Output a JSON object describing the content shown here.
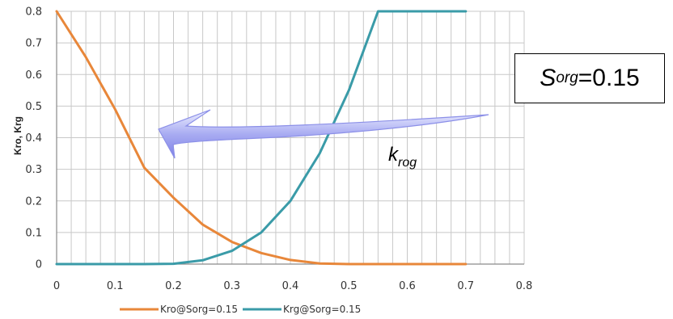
{
  "chart_data": {
    "type": "line",
    "title": "",
    "xlabel": "",
    "ylabel": "Kro, Krg",
    "xlim": [
      0,
      0.8
    ],
    "ylim": [
      0,
      0.8
    ],
    "xticks": [
      "0",
      "0.1",
      "0.2",
      "0.3",
      "0.4",
      "0.5",
      "0.6",
      "0.7",
      "0.8"
    ],
    "yticks": [
      "0",
      "0.1",
      "0.2",
      "0.3",
      "0.4",
      "0.5",
      "0.6",
      "0.7",
      "0.8"
    ],
    "grid": true,
    "legend_position": "bottom",
    "series": [
      {
        "name": "Kro@Sorg=0.15",
        "color": "#E8873A",
        "x": [
          0,
          0.05,
          0.1,
          0.15,
          0.2,
          0.25,
          0.3,
          0.35,
          0.4,
          0.45,
          0.5,
          0.55,
          0.6,
          0.65,
          0.7
        ],
        "y": [
          0.8,
          0.655,
          0.49,
          0.305,
          0.21,
          0.125,
          0.07,
          0.035,
          0.013,
          0.002,
          0,
          0,
          0,
          0,
          0
        ]
      },
      {
        "name": "Krg@Sorg=0.15",
        "color": "#3A9BA8",
        "x": [
          0,
          0.05,
          0.1,
          0.15,
          0.2,
          0.25,
          0.3,
          0.35,
          0.4,
          0.45,
          0.5,
          0.55,
          0.6,
          0.65,
          0.7
        ],
        "y": [
          0,
          0,
          0,
          0,
          0.001,
          0.012,
          0.042,
          0.1,
          0.2,
          0.35,
          0.55,
          0.8,
          0.8,
          0.8,
          0.8
        ]
      }
    ]
  },
  "annotations": {
    "sorg_main": "S",
    "sorg_sub": "org",
    "sorg_value": "=0.15",
    "krog_main": "k",
    "krog_sub": "rog"
  },
  "arrow_color": "#9B9EF0"
}
